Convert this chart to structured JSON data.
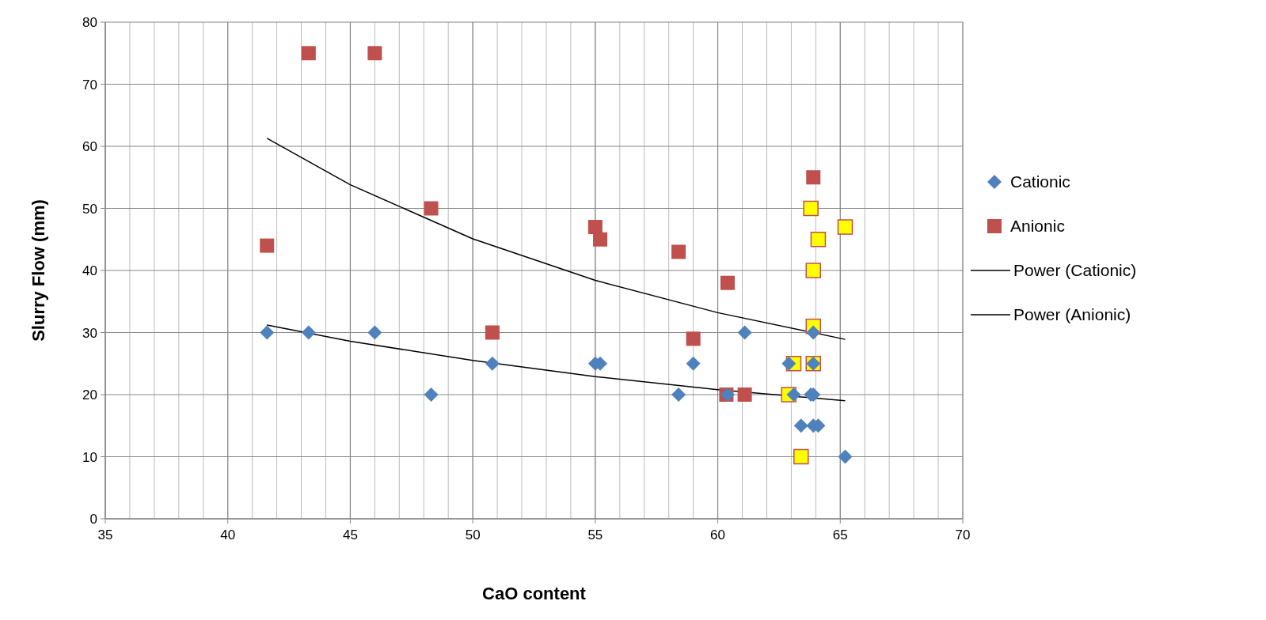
{
  "chart_data": {
    "type": "scatter",
    "xlabel": "CaO content",
    "ylabel": "Slurry Flow (mm)",
    "xlim": [
      35,
      70
    ],
    "xticks": [
      35,
      40,
      45,
      50,
      55,
      60,
      65,
      70
    ],
    "ylim": [
      0,
      80
    ],
    "yticks": [
      0,
      10,
      20,
      30,
      40,
      50,
      60,
      70,
      80
    ],
    "grid": true,
    "legend": "right",
    "series": [
      {
        "name": "Cationic",
        "color": "#4f81bd",
        "marker": "diamond",
        "x": [
          41.6,
          43.3,
          46,
          48.3,
          50.8,
          55,
          55.2,
          58.4,
          59,
          60.4,
          61.1,
          62.9,
          63.1,
          63.4,
          63.9,
          64.1,
          63.8,
          63.9,
          63.9,
          63.9,
          65.2
        ],
        "values": [
          30,
          30,
          30,
          20,
          25,
          25,
          25,
          20,
          25,
          20,
          30,
          25,
          20,
          15,
          15,
          15,
          20,
          20,
          25,
          30,
          10
        ]
      },
      {
        "name": "Anionic",
        "color": "#c0504d",
        "marker": "square",
        "x": [
          41.6,
          43.3,
          46,
          48.3,
          50.8,
          55,
          55.2,
          58.4,
          59,
          60.4,
          60.35,
          61.1,
          63.9
        ],
        "values": [
          44,
          75,
          75,
          50,
          30,
          47,
          45,
          43,
          29,
          38,
          20,
          20,
          55
        ]
      },
      {
        "color": "#ffff00",
        "marker": "square",
        "x": [
          63.8,
          64.1,
          63.9,
          65.2,
          63.9,
          63.1,
          63.9,
          62.9,
          63.4
        ],
        "values": [
          50,
          45,
          40,
          47,
          31,
          25,
          25,
          20,
          10
        ]
      },
      {
        "name": "Power (Cationic)",
        "type": "line",
        "color": "#000000",
        "marker": "none",
        "x": [
          41.6,
          45,
          50,
          55,
          60,
          65.2
        ],
        "values": [
          31.2,
          28.6,
          25.5,
          22.9,
          20.8,
          19
        ]
      },
      {
        "name": "Power (Anionic)",
        "type": "line",
        "color": "#000000",
        "marker": "none",
        "x": [
          41.6,
          45,
          50,
          55,
          60,
          65.2
        ],
        "values": [
          61.3,
          53.8,
          45.1,
          38.4,
          33.2,
          28.9
        ]
      }
    ]
  }
}
